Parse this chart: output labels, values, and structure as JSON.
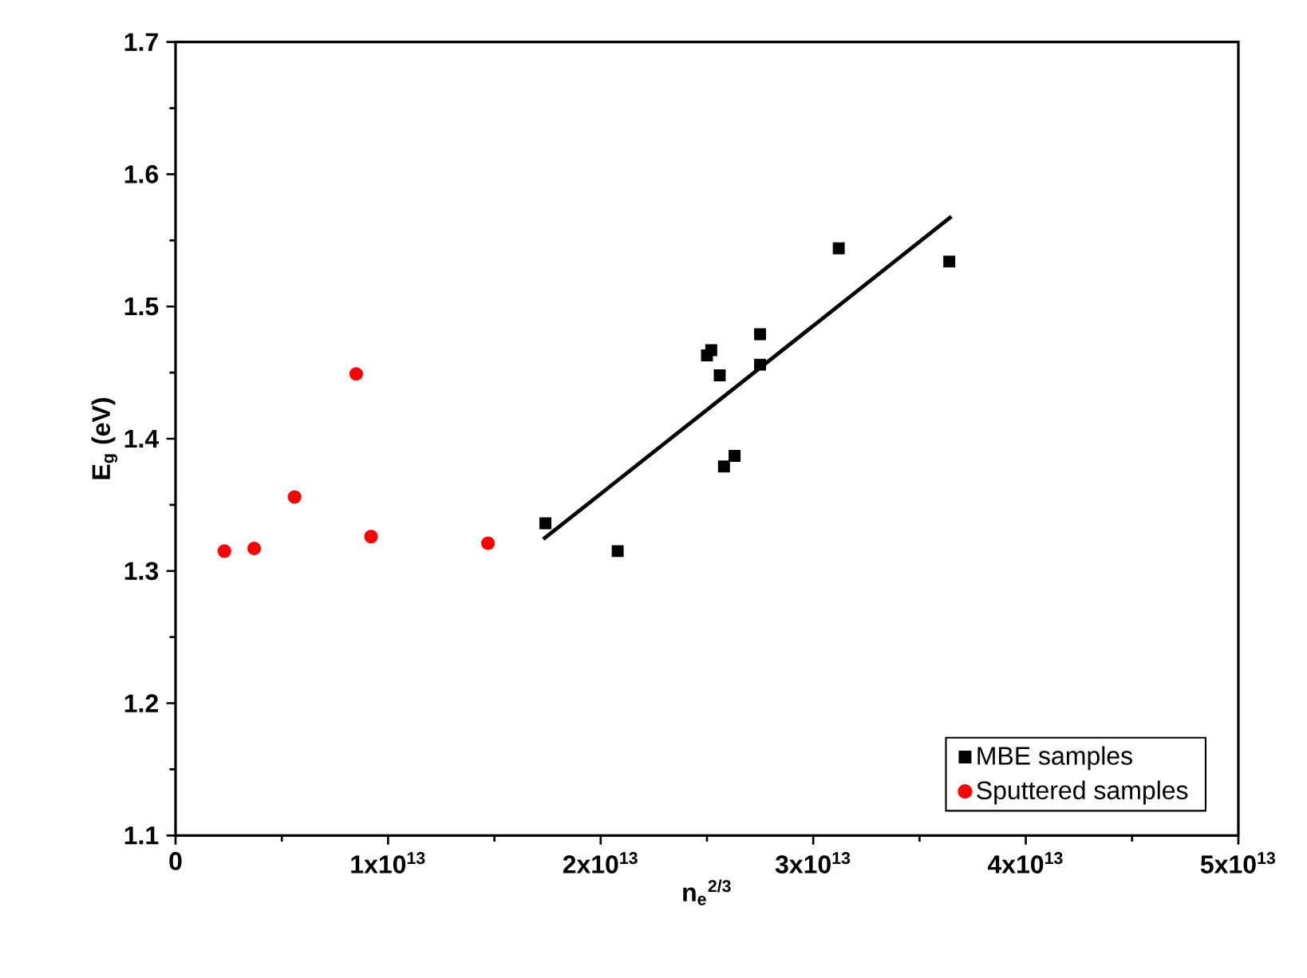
{
  "chart_data": {
    "type": "scatter",
    "xlabel": "n$_{e}$$^{2/3}$",
    "ylabel": "E$_{g}$ (eV)",
    "xlim": [
      0,
      50000000000000.0
    ],
    "ylim": [
      1.1,
      1.7
    ],
    "xticks": [
      0,
      {
        "value": 10000000000000.0,
        "label": "1x10$^{13}$"
      },
      {
        "value": 20000000000000.0,
        "label": "2x10$^{13}$"
      },
      {
        "value": 30000000000000.0,
        "label": "3x10$^{13}$"
      },
      {
        "value": 40000000000000.0,
        "label": "4x10$^{13}$"
      },
      {
        "value": 50000000000000.0,
        "label": "5x10$^{13}$"
      }
    ],
    "yticks": [
      1.1,
      1.2,
      1.3,
      1.4,
      1.5,
      1.6,
      1.7
    ],
    "legend": "bottom right",
    "grid": false,
    "series": [
      {
        "name": "MBE samples",
        "color": "#000000",
        "marker": "square",
        "x": [
          17400000000000.0,
          20800000000000.0,
          25000000000000.0,
          25200000000000.0,
          25600000000000.0,
          25800000000000.0,
          26300000000000.0,
          27500000000000.0,
          27500000000000.0,
          31200000000000.0,
          36400000000000.0
        ],
        "values": [
          1.336,
          1.315,
          1.463,
          1.467,
          1.448,
          1.379,
          1.387,
          1.479,
          1.456,
          1.544,
          1.534
        ]
      },
      {
        "name": "Sputtered samples",
        "color": "#ff0000",
        "marker": "circle",
        "x": [
          2300000000000.0,
          3700000000000.0,
          5600000000000.0,
          8500000000000.0,
          9200000000000.0,
          14700000000000.0
        ],
        "values": [
          1.315,
          1.317,
          1.356,
          1.449,
          1.326,
          1.321
        ]
      },
      {
        "type": "line",
        "color": "#000000",
        "marker": "none",
        "line_style": "solid",
        "x": [
          17300000000000.0,
          36500000000000.0
        ],
        "values": [
          1.324,
          1.568
        ]
      }
    ]
  }
}
